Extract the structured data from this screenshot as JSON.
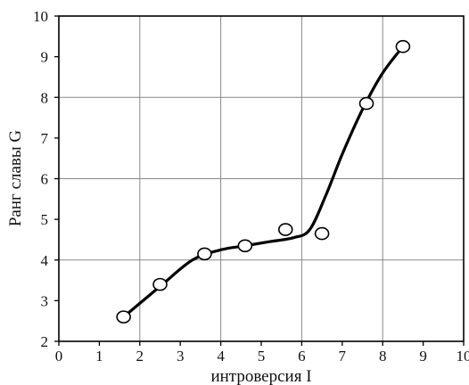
{
  "chart_data": {
    "type": "scatter",
    "xlabel": "интроверсия I",
    "ylabel": "Ранг славы G",
    "xlim": [
      0,
      10
    ],
    "ylim": [
      2,
      10
    ],
    "xticks": [
      "0",
      "1",
      "2",
      "3",
      "4",
      "5",
      "6",
      "7",
      "8",
      "9",
      "10"
    ],
    "yticks": [
      "2",
      "3",
      "4",
      "5",
      "6",
      "7",
      "8",
      "9",
      "10"
    ],
    "grid": true,
    "points": [
      {
        "x": 1.6,
        "y": 2.6
      },
      {
        "x": 2.5,
        "y": 3.4
      },
      {
        "x": 3.6,
        "y": 4.15
      },
      {
        "x": 4.6,
        "y": 4.35
      },
      {
        "x": 5.6,
        "y": 4.75
      },
      {
        "x": 6.5,
        "y": 4.65
      },
      {
        "x": 7.6,
        "y": 7.85
      },
      {
        "x": 8.5,
        "y": 9.25
      }
    ],
    "trend_curve": [
      {
        "x": 1.6,
        "y": 2.6
      },
      {
        "x": 2.5,
        "y": 3.35
      },
      {
        "x": 3.3,
        "y": 4.0
      },
      {
        "x": 4.0,
        "y": 4.25
      },
      {
        "x": 4.6,
        "y": 4.35
      },
      {
        "x": 5.2,
        "y": 4.45
      },
      {
        "x": 5.8,
        "y": 4.55
      },
      {
        "x": 6.2,
        "y": 4.75
      },
      {
        "x": 6.6,
        "y": 5.6
      },
      {
        "x": 7.0,
        "y": 6.6
      },
      {
        "x": 7.5,
        "y": 7.7
      },
      {
        "x": 8.0,
        "y": 8.6
      },
      {
        "x": 8.5,
        "y": 9.25
      }
    ]
  }
}
